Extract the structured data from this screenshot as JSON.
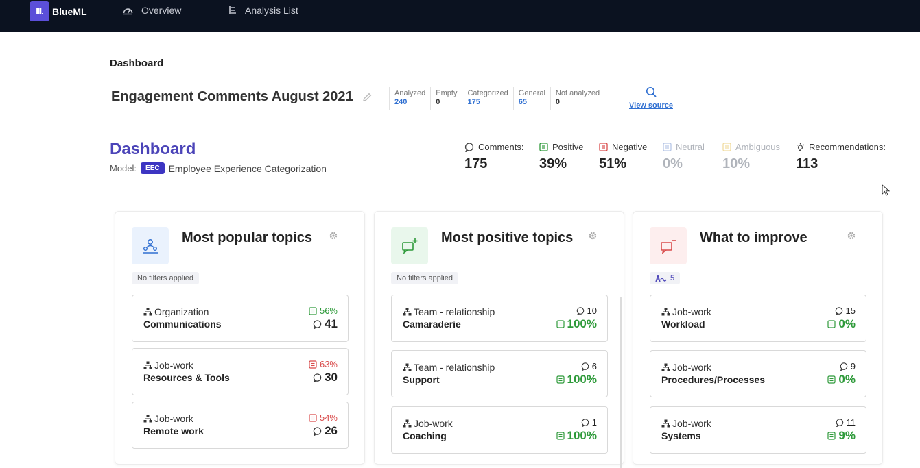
{
  "nav": {
    "logo_mark": "III.",
    "logo_text": "BlueML",
    "items": [
      {
        "label": "Overview",
        "icon": "gauge-icon"
      },
      {
        "label": "Analysis List",
        "icon": "list-icon"
      }
    ]
  },
  "breadcrumb": "Dashboard",
  "header": {
    "title": "Engagement Comments August 2021",
    "stats": [
      {
        "label": "Analyzed",
        "value": "240",
        "accent": true
      },
      {
        "label": "Empty",
        "value": "0",
        "accent": false
      },
      {
        "label": "Categorized",
        "value": "175",
        "accent": true
      },
      {
        "label": "General",
        "value": "65",
        "accent": true
      },
      {
        "label": "Not analyzed",
        "value": "0",
        "accent": false
      }
    ],
    "view_source": "View source"
  },
  "dashboard": {
    "title": "Dashboard",
    "model_label": "Model:",
    "model_badge": "EEC",
    "model_name": "Employee Experience Categorization"
  },
  "metrics": [
    {
      "label": "Comments:",
      "value": "175",
      "icon": "comment-icon",
      "muted": false
    },
    {
      "label": "Positive",
      "value": "39%",
      "icon": "positive-icon",
      "muted": false
    },
    {
      "label": "Negative",
      "value": "51%",
      "icon": "negative-icon",
      "muted": false
    },
    {
      "label": "Neutral",
      "value": "0%",
      "icon": "neutral-icon",
      "muted": true
    },
    {
      "label": "Ambiguous",
      "value": "10%",
      "icon": "ambiguous-icon",
      "muted": true
    },
    {
      "label": "Recommendations:",
      "value": "113",
      "icon": "lightbulb-icon",
      "muted": false
    }
  ],
  "colors": {
    "accent": "#4b44b8",
    "positive": "#2e9a3a",
    "negative": "#d94b4b",
    "link": "#2f6fd1"
  },
  "cards": [
    {
      "title": "Most popular topics",
      "icon": "people-icon",
      "filter": "No filters applied",
      "topics": [
        {
          "category": "Organization",
          "name": "Communications",
          "pct": "56%",
          "pct_type": "pos",
          "count": "41"
        },
        {
          "category": "Job-work",
          "name": "Resources & Tools",
          "pct": "63%",
          "pct_type": "neg",
          "count": "30"
        },
        {
          "category": "Job-work",
          "name": "Remote work",
          "pct": "54%",
          "pct_type": "neg",
          "count": "26"
        }
      ]
    },
    {
      "title": "Most positive topics",
      "icon": "add-comment-icon",
      "filter": "No filters applied",
      "topics": [
        {
          "category": "Team - relationship",
          "name": "Camaraderie",
          "count": "10",
          "pct": "100%"
        },
        {
          "category": "Team - relationship",
          "name": "Support",
          "count": "6",
          "pct": "100%"
        },
        {
          "category": "Job-work",
          "name": "Coaching",
          "count": "1",
          "pct": "100%"
        }
      ]
    },
    {
      "title": "What to improve",
      "icon": "minus-comment-icon",
      "filter_count": "5",
      "topics": [
        {
          "category": "Job-work",
          "name": "Workload",
          "count": "15",
          "pct": "0%"
        },
        {
          "category": "Job-work",
          "name": "Procedures/Processes",
          "count": "9",
          "pct": "0%"
        },
        {
          "category": "Job-work",
          "name": "Systems",
          "count": "11",
          "pct": "9%"
        }
      ]
    }
  ]
}
